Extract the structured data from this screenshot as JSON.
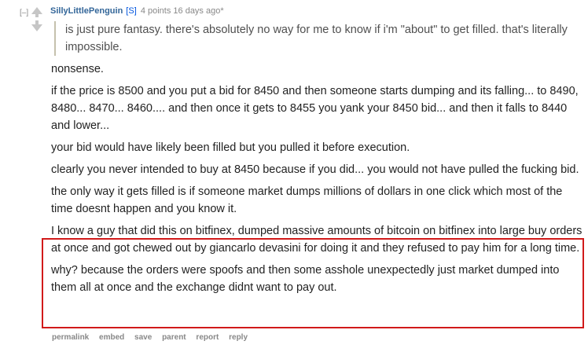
{
  "comment": {
    "collapse_label": "[–]",
    "author": "SillyLittlePenguin",
    "submitter_tag": "[S]",
    "score": "4 points",
    "age": "16 days ago*",
    "quote": "is just pure fantasy. there's absolutely no way for me to know if i'm \"about\" to get filled. that's literally impossible.",
    "paragraphs": [
      "nonsense.",
      "if the price is 8500 and you put a bid for 8450 and then someone starts dumping and its falling... to 8490, 8480... 8470... 8460.... and then once it gets to 8455 you yank your 8450 bid... and then it falls to 8440 and lower...",
      "your bid would have likely been filled but you pulled it before execution.",
      "clearly you never intended to buy at 8450 because if you did... you would not have pulled the fucking bid.",
      "the only way it gets filled is if someone market dumps millions of dollars in one click which most of the time doesnt happen and you know it.",
      "I know a guy that did this on bitfinex, dumped massive amounts of bitcoin on bitfinex into large buy orders at once and got chewed out by giancarlo devasini for doing it and they refused to pay him for a long time.",
      "why? because the orders were spoofs and then some asshole unexpectedly just market dumped into them all at once and the exchange didnt want to pay out."
    ],
    "buttons": [
      "permalink",
      "embed",
      "save",
      "parent",
      "report",
      "reply"
    ],
    "icons": {
      "upvote": "upvote-arrow-icon",
      "downvote": "downvote-arrow-icon"
    },
    "colors": {
      "author": "#336699",
      "submitter": "#0055df",
      "highlight_border": "#d11a1a",
      "arrow": "#c6c6c6"
    }
  }
}
